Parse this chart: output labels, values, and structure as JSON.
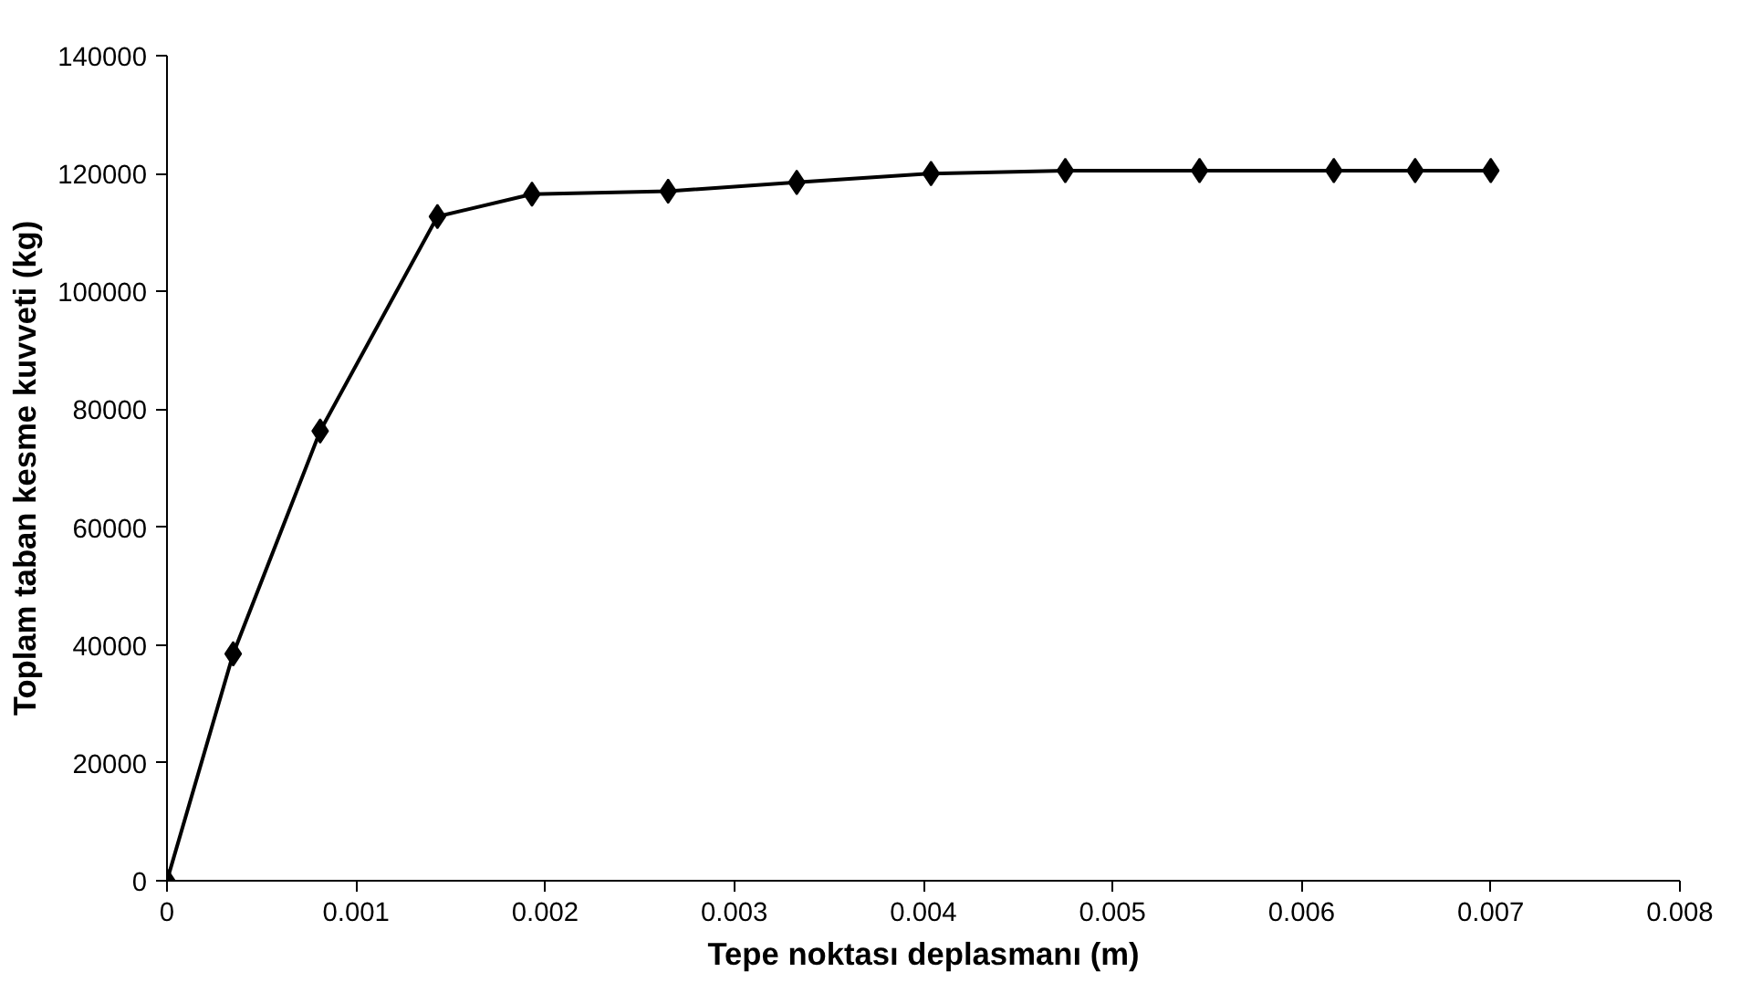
{
  "chart_data": {
    "type": "line",
    "xlabel": "Tepe noktası deplasmanı (m)",
    "ylabel": "Toplam taban kesme kuvveti (kg)",
    "x": [
      0,
      0.00035,
      0.00081,
      0.00143,
      0.00193,
      0.00265,
      0.00333,
      0.00404,
      0.00475,
      0.00546,
      0.00617,
      0.0066,
      0.007
    ],
    "series": [
      {
        "color": "#000000",
        "values": [
          0,
          38500,
          76300,
          112700,
          116500,
          117000,
          118500,
          120000,
          120500,
          120500,
          120500,
          120500,
          120500
        ]
      }
    ],
    "xlim": [
      0,
      0.008
    ],
    "xticks": [
      0,
      0.001,
      0.002,
      0.003,
      0.004,
      0.005,
      0.006,
      0.007,
      0.008
    ],
    "ylim": [
      0,
      140000
    ],
    "yticks": [
      0,
      20000,
      40000,
      60000,
      80000,
      100000,
      120000,
      140000
    ],
    "grid": false,
    "marker": "diamond",
    "line_style": "solid"
  }
}
